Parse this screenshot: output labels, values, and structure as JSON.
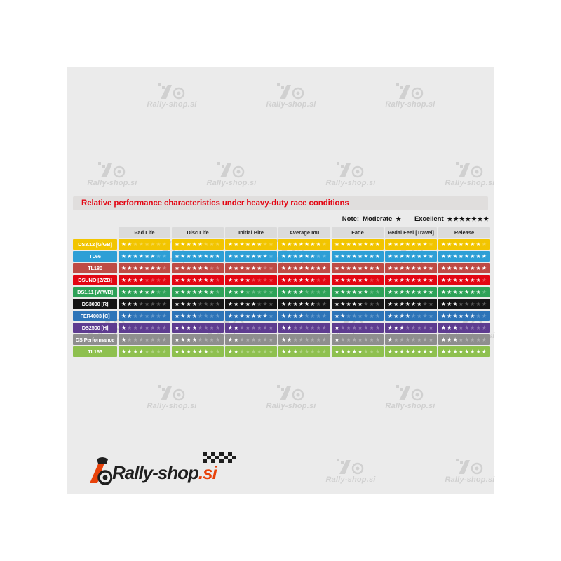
{
  "title": "Relative performance characteristics under heavy-duty race conditions",
  "note": {
    "label": "Note:",
    "moderate_label": "Moderate",
    "moderate_stars": "★",
    "excellent_label": "Excellent",
    "excellent_stars": "★★★★★★★"
  },
  "watermark": {
    "text": "Rally-shop.si"
  },
  "logo": {
    "main": "Rally-shop",
    "suffix": ".si"
  },
  "chart_data": {
    "type": "table",
    "title": "Relative performance characteristics under heavy-duty race conditions",
    "columns": [
      "Pad Life",
      "Disc Life",
      "Initial Bite",
      "Average mu",
      "Fade",
      "Pedal Feel [Travel]",
      "Release"
    ],
    "scale": {
      "min": 1,
      "max": 8,
      "legend_moderate": 1,
      "legend_excellent": 7
    },
    "rows": [
      {
        "label": "DS3.12 [G/GB]",
        "color": "#f2c500",
        "values": [
          2,
          5,
          6,
          7,
          8,
          7,
          7
        ]
      },
      {
        "label": "TL66",
        "color": "#2e9fd6",
        "values": [
          6,
          8,
          7,
          6,
          8,
          8,
          8
        ]
      },
      {
        "label": "TL180",
        "color": "#be4b45",
        "values": [
          7,
          6,
          6,
          8,
          8,
          8,
          8
        ]
      },
      {
        "label": "DSUNO [Z/ZB]",
        "color": "#e30613",
        "values": [
          4,
          7,
          4,
          6,
          6,
          8,
          7
        ]
      },
      {
        "label": "DS1.11 [W/WB]",
        "color": "#2ea258",
        "values": [
          6,
          7,
          3,
          4,
          6,
          8,
          7
        ]
      },
      {
        "label": "DS3000 [R]",
        "color": "#151515",
        "values": [
          3,
          4,
          5,
          6,
          5,
          6,
          3
        ]
      },
      {
        "label": "FER4003 [C]",
        "color": "#2d74b8",
        "values": [
          2,
          4,
          7,
          4,
          2,
          4,
          6
        ]
      },
      {
        "label": "DS2500 [H]",
        "color": "#5e3c90",
        "values": [
          1,
          4,
          2,
          2,
          1,
          3,
          3
        ]
      },
      {
        "label": "DS Performance",
        "color": "#8e8e8e",
        "values": [
          1,
          4,
          2,
          2,
          1,
          1,
          3
        ]
      },
      {
        "label": "TL163",
        "color": "#8ec04f",
        "values": [
          4,
          6,
          2,
          3,
          5,
          8,
          8
        ]
      }
    ]
  }
}
